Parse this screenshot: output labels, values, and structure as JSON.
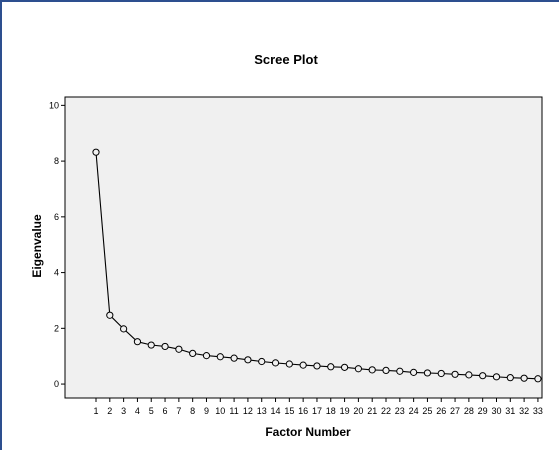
{
  "chart_data": {
    "type": "line",
    "title": "Scree Plot",
    "xlabel": "Factor Number",
    "ylabel": "Eigenvalue",
    "categories": [
      "1",
      "2",
      "3",
      "4",
      "5",
      "6",
      "7",
      "8",
      "9",
      "10",
      "11",
      "12",
      "13",
      "14",
      "15",
      "16",
      "17",
      "18",
      "19",
      "20",
      "21",
      "22",
      "23",
      "24",
      "25",
      "26",
      "27",
      "28",
      "29",
      "30",
      "31",
      "32",
      "33"
    ],
    "values": [
      8.32,
      2.47,
      1.98,
      1.52,
      1.4,
      1.35,
      1.25,
      1.1,
      1.02,
      0.98,
      0.93,
      0.87,
      0.81,
      0.76,
      0.72,
      0.68,
      0.65,
      0.62,
      0.6,
      0.55,
      0.51,
      0.49,
      0.46,
      0.42,
      0.4,
      0.38,
      0.35,
      0.33,
      0.3,
      0.26,
      0.23,
      0.21,
      0.19
    ],
    "ylim": [
      -0.5,
      10.3
    ],
    "yticks": [
      0,
      2,
      4,
      6,
      8,
      10
    ],
    "grid": false,
    "marker": "circle",
    "colors": {
      "plot_background": "#f0f0f0",
      "line": "#000000",
      "frame_border": "#2d4f8f"
    }
  }
}
